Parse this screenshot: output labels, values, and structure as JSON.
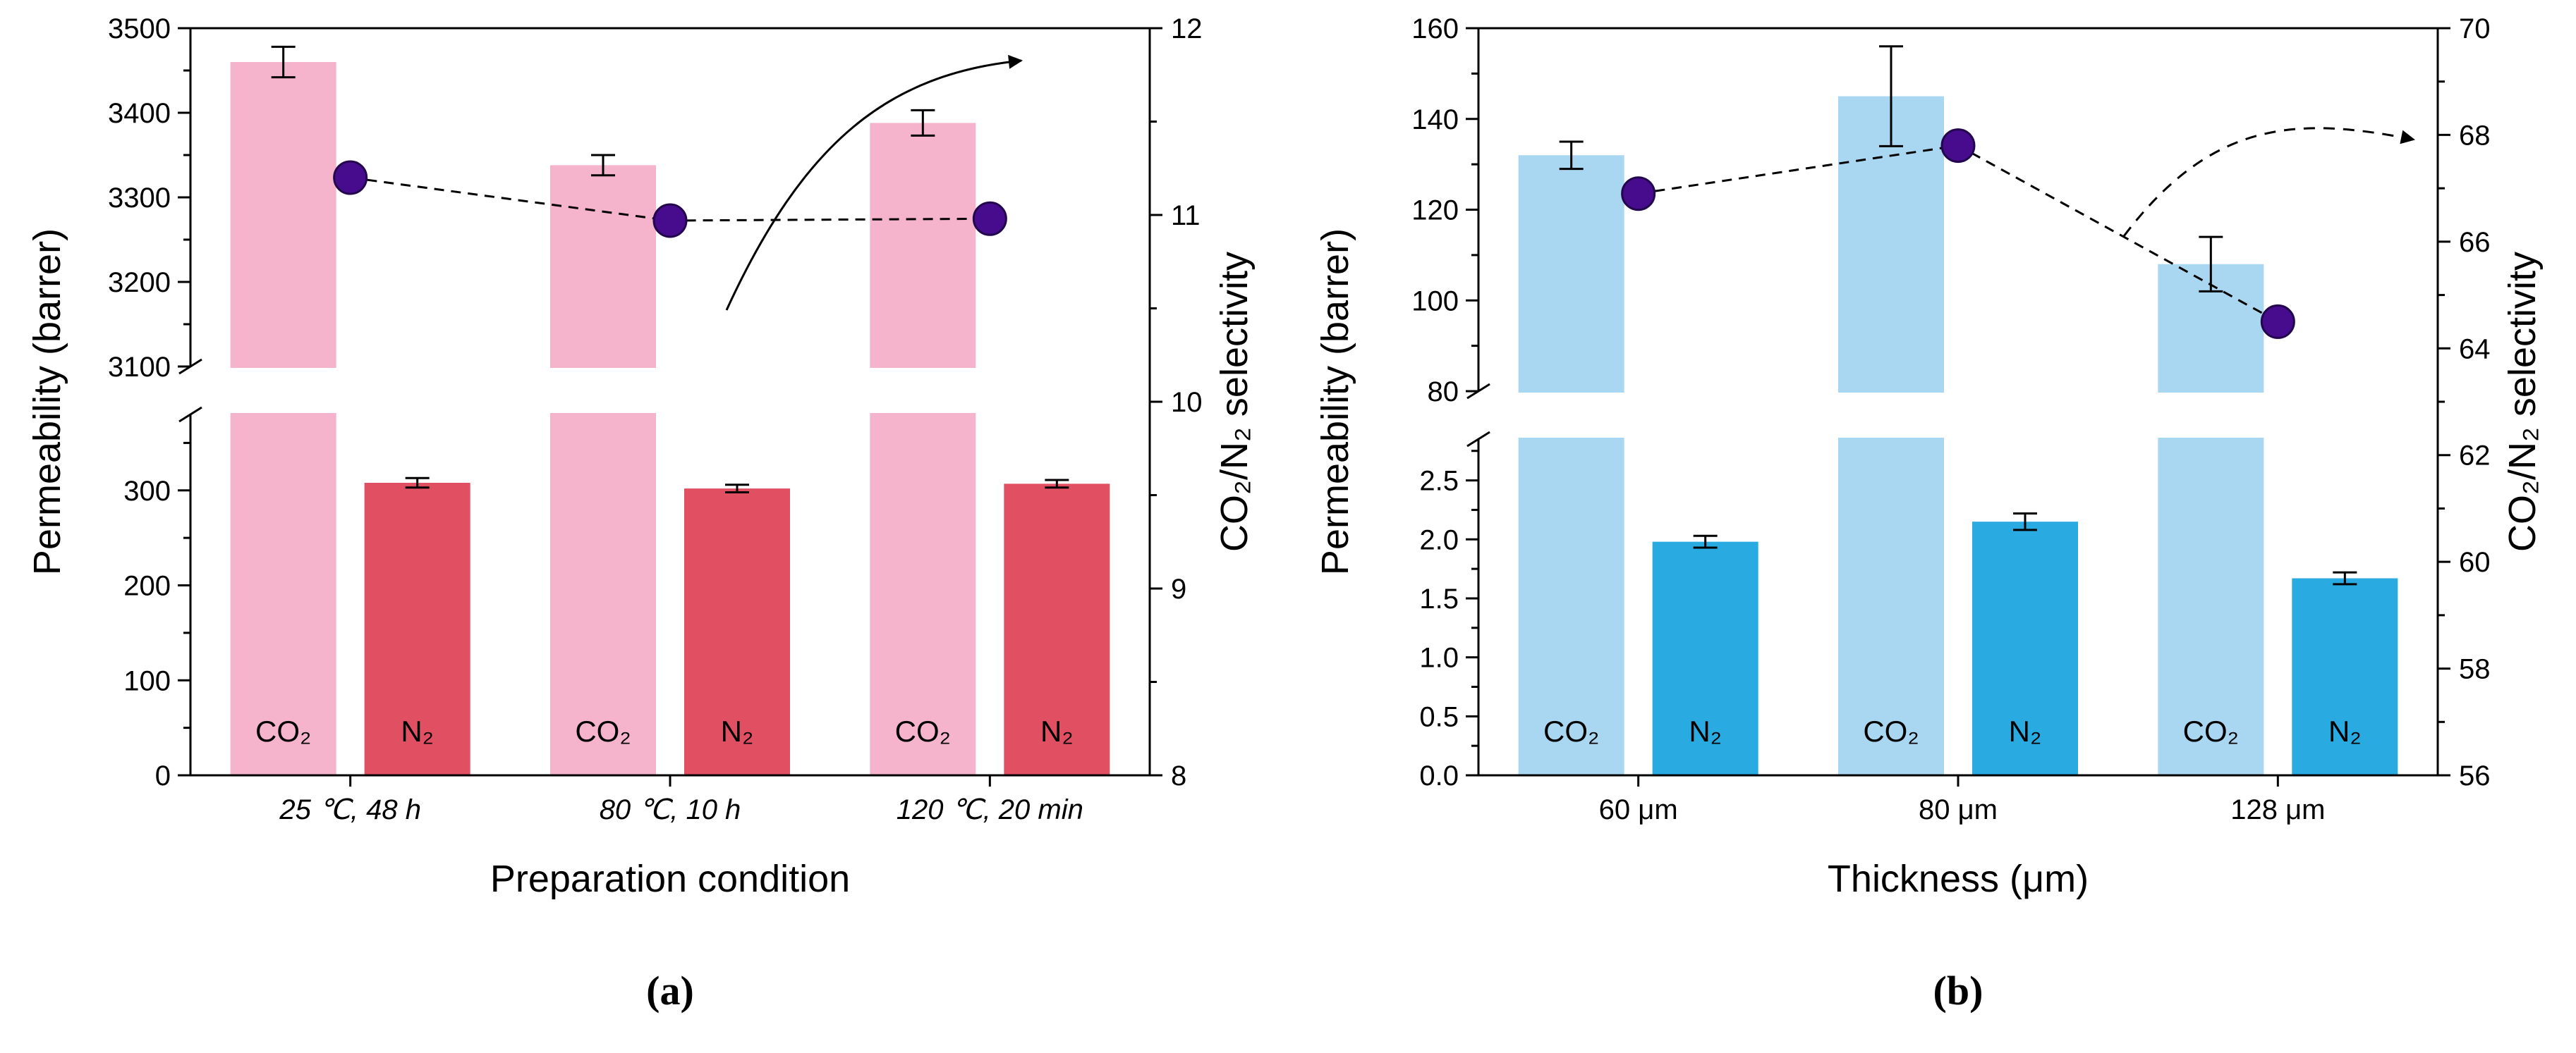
{
  "figure": {
    "background": "#ffffff"
  },
  "chart_data": [
    {
      "type": "bar",
      "panel_label": "(a)",
      "xlabel": "Preparation condition",
      "ylabel_left": "Permeability (barrer)",
      "ylabel_right": "CO₂/N₂ selectivity",
      "categories": [
        "25 ℃, 48 h",
        "80 ℃, 10 h",
        "120 ℃, 20 min"
      ],
      "categories_italic": true,
      "left_axis": {
        "upper": {
          "min": 3100,
          "max": 3500,
          "ticks": [
            3100,
            3200,
            3300,
            3400,
            3500
          ]
        },
        "lower": {
          "min": 0,
          "max": 380,
          "ticks": [
            0,
            100,
            200,
            300
          ],
          "tick_labels": [
            "0",
            "100",
            "200",
            "300"
          ]
        }
      },
      "right_axis": {
        "min": 8,
        "max": 12,
        "ticks": [
          8,
          9,
          10,
          11,
          12
        ]
      },
      "bar_series": [
        {
          "name": "CO₂",
          "key": "co2",
          "segment": "upper",
          "color": "#f5b3cc",
          "values": [
            3460,
            3338,
            3388
          ],
          "errors": [
            18,
            12,
            15
          ]
        },
        {
          "name": "N₂",
          "key": "n2",
          "segment": "lower",
          "color": "#e04f62",
          "values": [
            308,
            302,
            307
          ],
          "errors": [
            5,
            4,
            4
          ]
        }
      ],
      "point_series": {
        "name": "CO₂/N₂ selectivity",
        "color": "#470c8e",
        "values": [
          11.2,
          10.97,
          10.98
        ]
      },
      "arrow_style": "solid"
    },
    {
      "type": "bar",
      "panel_label": "(b)",
      "xlabel": "Thickness (μm)",
      "ylabel_left": "Permeability (barrer)",
      "ylabel_right": "CO₂/N₂ selectivity",
      "categories": [
        "60 μm",
        "80 μm",
        "128 μm"
      ],
      "categories_italic": false,
      "left_axis": {
        "upper": {
          "min": 80,
          "max": 160,
          "ticks": [
            80,
            100,
            120,
            140,
            160
          ]
        },
        "lower": {
          "min": 0,
          "max": 2.85,
          "ticks": [
            0,
            0.5,
            1,
            1.5,
            2,
            2.5
          ],
          "tick_labels": [
            "0.0",
            "0.5",
            "1.0",
            "1.5",
            "2.0",
            "2.5"
          ]
        }
      },
      "right_axis": {
        "min": 56,
        "max": 70,
        "ticks": [
          56,
          58,
          60,
          62,
          64,
          66,
          68,
          70
        ]
      },
      "bar_series": [
        {
          "name": "CO₂",
          "key": "co2",
          "segment": "upper",
          "color": "#a9d6f1",
          "values": [
            132,
            145,
            108
          ],
          "errors": [
            3,
            11,
            6
          ]
        },
        {
          "name": "N₂",
          "key": "n2",
          "segment": "lower",
          "color": "#29aae1",
          "values": [
            1.98,
            2.15,
            1.67
          ],
          "errors": [
            0.05,
            0.07,
            0.05
          ]
        }
      ],
      "point_series": {
        "name": "CO₂/N₂ selectivity",
        "color": "#470c8e",
        "values": [
          66.9,
          67.8,
          64.5
        ]
      },
      "arrow_style": "dashed"
    }
  ]
}
